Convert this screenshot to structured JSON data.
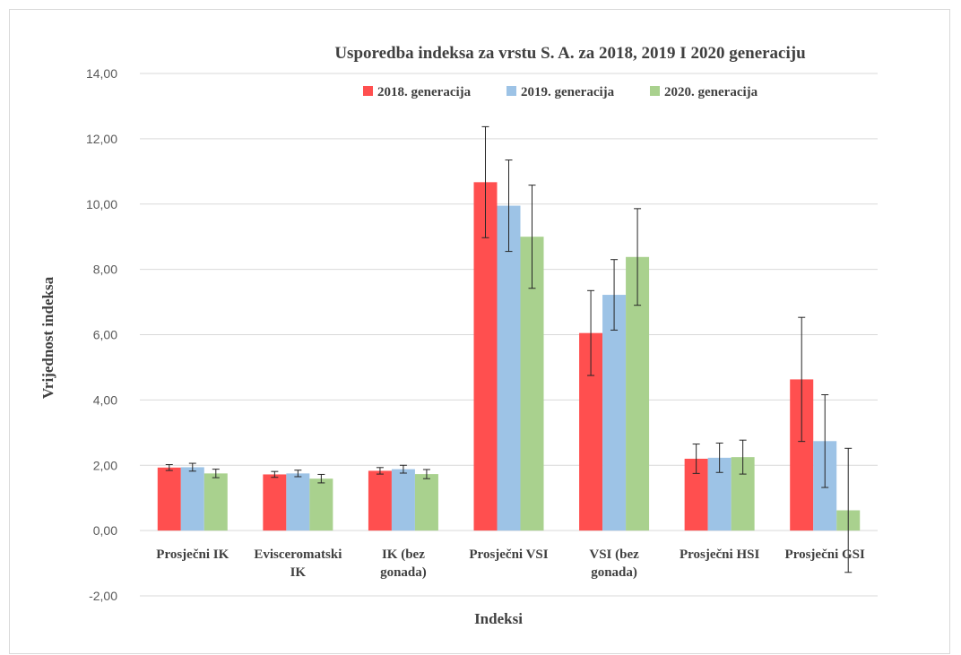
{
  "chart_data": {
    "type": "bar",
    "title": "Usporedba indeksa za vrstu S. A. za 2018, 2019 I 2020 generaciju",
    "xlabel": "Indeksi",
    "ylabel": "Vrijednost indeksa",
    "ylim": [
      -2,
      14
    ],
    "yticks": [
      "-2,00",
      "0,00",
      "2,00",
      "4,00",
      "6,00",
      "8,00",
      "10,00",
      "12,00",
      "14,00"
    ],
    "grid": true,
    "legend_position": "top",
    "categories": [
      [
        "Prosječni IK"
      ],
      [
        "Evisceromatski",
        "IK"
      ],
      [
        "IK (bez",
        "gonada)"
      ],
      [
        "Prosječni VSI"
      ],
      [
        "VSI (bez",
        "gonada)"
      ],
      [
        "Prosječni HSI"
      ],
      [
        "Prosječni GSI"
      ]
    ],
    "series": [
      {
        "name": "2018. generacija",
        "color": "#ff4f4f",
        "values": [
          1.93,
          1.72,
          1.83,
          10.67,
          6.05,
          2.2,
          4.63
        ],
        "errors": [
          0.09,
          0.09,
          0.1,
          1.7,
          1.3,
          0.45,
          1.9
        ]
      },
      {
        "name": "2019. generacija",
        "color": "#9dc3e6",
        "values": [
          1.94,
          1.75,
          1.88,
          9.95,
          7.22,
          2.23,
          2.74
        ],
        "errors": [
          0.12,
          0.1,
          0.12,
          1.4,
          1.08,
          0.45,
          1.42
        ]
      },
      {
        "name": "2020. generacija",
        "color": "#a9d18e",
        "values": [
          1.75,
          1.59,
          1.73,
          9.0,
          8.38,
          2.25,
          0.62
        ],
        "errors": [
          0.13,
          0.13,
          0.14,
          1.58,
          1.48,
          0.52,
          1.9
        ]
      }
    ]
  }
}
